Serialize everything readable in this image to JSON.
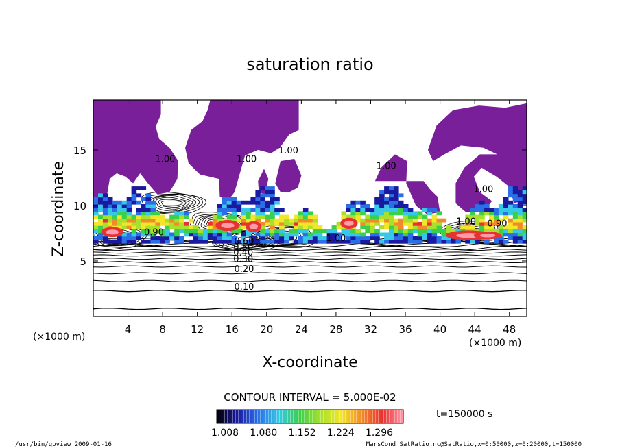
{
  "chart_data": {
    "type": "heatmap",
    "title": "saturation ratio",
    "xlabel": "X-coordinate",
    "ylabel": "Z-coordinate",
    "x_unit": "(×1000 m)",
    "y_unit": "(×1000 m)",
    "xlim": [
      0,
      50
    ],
    "ylim": [
      0,
      19.5
    ],
    "xticks": [
      4,
      8,
      12,
      16,
      20,
      24,
      28,
      32,
      36,
      40,
      44,
      48
    ],
    "yticks": [
      5,
      10,
      15
    ],
    "contour_interval_text": "CONTOUR INTERVAL = 5.000E-02",
    "time_text": "t=150000 s",
    "colorbar": {
      "labels": [
        "1.008",
        "1.080",
        "1.152",
        "1.224",
        "1.296"
      ],
      "colors": [
        "#000000",
        "#1a1aa0",
        "#2a6fe6",
        "#36c8e6",
        "#3ccf4a",
        "#a8e02c",
        "#f2e62a",
        "#f28a2a",
        "#e63232",
        "#ff9aa8"
      ]
    },
    "saturated_fill_color": "#7a1f9a",
    "contour_labels": [
      {
        "text": "0.10",
        "x": 17.4,
        "z": 2.4
      },
      {
        "text": "0.20",
        "x": 17.4,
        "z": 4.0
      },
      {
        "text": "0.30",
        "x": 17.3,
        "z": 4.9
      },
      {
        "text": "0.40",
        "x": 17.3,
        "z": 5.5
      },
      {
        "text": "0.50",
        "x": 17.3,
        "z": 6.0
      },
      {
        "text": "0.60",
        "x": 17.4,
        "z": 6.5
      },
      {
        "text": "0.90",
        "x": 7.0,
        "z": 7.3
      },
      {
        "text": "1.00",
        "x": 28.0,
        "z": 6.8
      },
      {
        "text": "1.00",
        "x": 8.3,
        "z": 13.9
      },
      {
        "text": "1.00",
        "x": 17.7,
        "z": 13.9
      },
      {
        "text": "1.00",
        "x": 22.5,
        "z": 14.7
      },
      {
        "text": "1.00",
        "x": 33.8,
        "z": 13.3
      },
      {
        "text": "1.00",
        "x": 45.0,
        "z": 11.2
      },
      {
        "text": "1.00",
        "x": 43.0,
        "z": 8.3
      },
      {
        "text": "0.90",
        "x": 46.6,
        "z": 8.1
      }
    ],
    "footer_left": "/usr/bin/gpview   2009-01-16",
    "footer_right": "MarsCond_SatRatio.nc@SatRatio,x=0:50000,z=0:20000,t=150000"
  }
}
